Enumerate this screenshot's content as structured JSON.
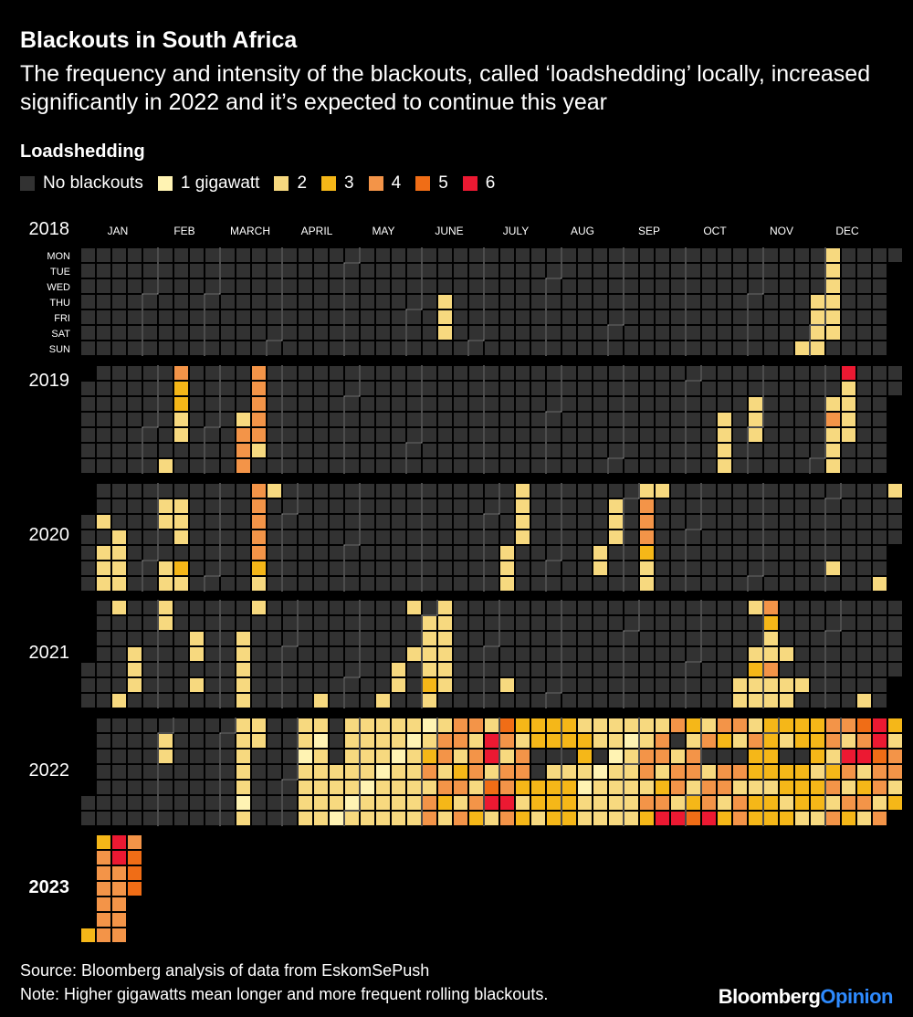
{
  "header": {
    "title": "Blackouts in South Africa",
    "subtitle": "The frequency and intensity of the blackouts, called ‘loadshedding’ locally, increased significantly in 2022 and it’s expected to continue this year"
  },
  "legend": {
    "title": "Loadshedding",
    "items": [
      {
        "label": "No blackouts",
        "color": "#323232"
      },
      {
        "label": "1 gigawatt",
        "color": "#fff3b3"
      },
      {
        "label": "2",
        "color": "#f7d97f"
      },
      {
        "label": "3",
        "color": "#f5b718"
      },
      {
        "label": "4",
        "color": "#f39448"
      },
      {
        "label": "5",
        "color": "#f06d16"
      },
      {
        "label": "6",
        "color": "#ec1932"
      }
    ]
  },
  "chart_data": {
    "type": "heatmap",
    "title": "Blackouts in South Africa",
    "months": [
      "JAN",
      "FEB",
      "MARCH",
      "APRIL",
      "MAY",
      "JUNE",
      "JULY",
      "AUG",
      "SEP",
      "OCT",
      "NOV",
      "DEC"
    ],
    "weekdays": [
      "MON",
      "TUE",
      "WED",
      "THU",
      "FRI",
      "SAT",
      "SUN"
    ],
    "value_scale": "0 = no blackouts, 1-6 = loadshedding gigawatts",
    "levels": [
      0,
      1,
      2,
      3,
      4,
      5,
      6
    ],
    "years": [
      {
        "year": "2018",
        "days": [
          [
            "2018-06-14",
            2
          ],
          [
            "2018-06-15",
            2
          ],
          [
            "2018-06-16",
            2
          ],
          [
            "2018-11-25",
            2
          ],
          [
            "2018-12-02",
            2
          ],
          [
            "2018-12-01",
            2
          ],
          [
            "2018-11-29",
            2
          ],
          [
            "2018-11-30",
            2
          ],
          [
            "2018-12-03",
            2
          ],
          [
            "2018-12-04",
            2
          ],
          [
            "2018-12-05",
            2
          ],
          [
            "2018-12-06",
            2
          ],
          [
            "2018-12-07",
            2
          ],
          [
            "2018-12-08",
            2
          ]
        ]
      },
      {
        "year": "2019",
        "days": [
          [
            "2019-02-11",
            4
          ],
          [
            "2019-02-12",
            3
          ],
          [
            "2019-02-13",
            3
          ],
          [
            "2019-02-14",
            2
          ],
          [
            "2019-02-15",
            2
          ],
          [
            "2019-02-10",
            2
          ],
          [
            "2019-03-18",
            4
          ],
          [
            "2019-03-19",
            4
          ],
          [
            "2019-03-20",
            4
          ],
          [
            "2019-03-21",
            4
          ],
          [
            "2019-03-22",
            4
          ],
          [
            "2019-03-23",
            2
          ],
          [
            "2019-03-14",
            2
          ],
          [
            "2019-03-15",
            4
          ],
          [
            "2019-03-16",
            4
          ],
          [
            "2019-03-17",
            4
          ],
          [
            "2019-10-17",
            2
          ],
          [
            "2019-10-18",
            2
          ],
          [
            "2019-10-19",
            2
          ],
          [
            "2019-10-20",
            2
          ],
          [
            "2019-10-31",
            2
          ],
          [
            "2019-11-01",
            2
          ],
          [
            "2019-10-30",
            2
          ],
          [
            "2019-12-09",
            6
          ],
          [
            "2019-12-10",
            2
          ],
          [
            "2019-12-11",
            2
          ],
          [
            "2019-12-12",
            2
          ],
          [
            "2019-12-13",
            2
          ],
          [
            "2019-12-04",
            2
          ],
          [
            "2019-12-05",
            4
          ],
          [
            "2019-12-06",
            2
          ],
          [
            "2019-12-07",
            2
          ],
          [
            "2019-12-08",
            2
          ]
        ]
      },
      {
        "year": "2020",
        "days": [
          [
            "2020-01-08",
            2
          ],
          [
            "2020-01-10",
            2
          ],
          [
            "2020-01-11",
            2
          ],
          [
            "2020-01-12",
            2
          ],
          [
            "2020-01-19",
            2
          ],
          [
            "2020-01-17",
            2
          ],
          [
            "2020-01-16",
            2
          ],
          [
            "2020-01-18",
            2
          ],
          [
            "2020-02-04",
            2
          ],
          [
            "2020-02-05",
            2
          ],
          [
            "2020-02-11",
            2
          ],
          [
            "2020-02-12",
            2
          ],
          [
            "2020-02-13",
            2
          ],
          [
            "2020-02-08",
            2
          ],
          [
            "2020-02-09",
            2
          ],
          [
            "2020-02-15",
            3
          ],
          [
            "2020-02-16",
            2
          ],
          [
            "2020-03-16",
            4
          ],
          [
            "2020-03-17",
            4
          ],
          [
            "2020-03-18",
            4
          ],
          [
            "2020-03-19",
            4
          ],
          [
            "2020-03-20",
            4
          ],
          [
            "2020-03-21",
            3
          ],
          [
            "2020-03-22",
            2
          ],
          [
            "2020-03-23",
            2
          ],
          [
            "2020-07-13",
            2
          ],
          [
            "2020-07-14",
            2
          ],
          [
            "2020-07-15",
            2
          ],
          [
            "2020-07-16",
            2
          ],
          [
            "2020-07-10",
            2
          ],
          [
            "2020-07-11",
            2
          ],
          [
            "2020-07-12",
            2
          ],
          [
            "2020-08-25",
            2
          ],
          [
            "2020-08-26",
            2
          ],
          [
            "2020-08-27",
            2
          ],
          [
            "2020-08-21",
            2
          ],
          [
            "2020-08-22",
            2
          ],
          [
            "2020-09-07",
            2
          ],
          [
            "2020-09-08",
            4
          ],
          [
            "2020-09-09",
            4
          ],
          [
            "2020-09-10",
            4
          ],
          [
            "2020-09-11",
            3
          ],
          [
            "2020-09-12",
            2
          ],
          [
            "2020-09-13",
            2
          ],
          [
            "2020-09-14",
            2
          ],
          [
            "2020-12-05",
            2
          ],
          [
            "2020-12-27",
            2
          ],
          [
            "2020-12-28",
            2
          ]
        ]
      },
      {
        "year": "2021",
        "days": [
          [
            "2021-01-21",
            2
          ],
          [
            "2021-01-22",
            2
          ],
          [
            "2021-01-23",
            2
          ],
          [
            "2021-01-17",
            2
          ],
          [
            "2021-01-11",
            2
          ],
          [
            "2021-02-01",
            2
          ],
          [
            "2021-02-02",
            2
          ],
          [
            "2021-02-17",
            2
          ],
          [
            "2021-02-18",
            2
          ],
          [
            "2021-02-20",
            2
          ],
          [
            "2021-03-11",
            2
          ],
          [
            "2021-03-12",
            2
          ],
          [
            "2021-03-10",
            2
          ],
          [
            "2021-03-13",
            2
          ],
          [
            "2021-03-14",
            2
          ],
          [
            "2021-03-15",
            2
          ],
          [
            "2021-04-18",
            2
          ],
          [
            "2021-05-21",
            2
          ],
          [
            "2021-05-22",
            2
          ],
          [
            "2021-05-16",
            2
          ],
          [
            "2021-05-24",
            2
          ],
          [
            "2021-05-27",
            2
          ],
          [
            "2021-06-01",
            2
          ],
          [
            "2021-06-02",
            2
          ],
          [
            "2021-06-03",
            2
          ],
          [
            "2021-06-04",
            2
          ],
          [
            "2021-06-05",
            3
          ],
          [
            "2021-06-06",
            2
          ],
          [
            "2021-06-07",
            2
          ],
          [
            "2021-06-08",
            2
          ],
          [
            "2021-06-09",
            2
          ],
          [
            "2021-06-10",
            2
          ],
          [
            "2021-06-11",
            2
          ],
          [
            "2021-06-12",
            2
          ],
          [
            "2021-07-10",
            2
          ],
          [
            "2021-10-23",
            2
          ],
          [
            "2021-10-24",
            2
          ],
          [
            "2021-10-25",
            2
          ],
          [
            "2021-10-28",
            2
          ],
          [
            "2021-10-29",
            3
          ],
          [
            "2021-10-30",
            2
          ],
          [
            "2021-10-31",
            2
          ],
          [
            "2021-11-01",
            4
          ],
          [
            "2021-11-02",
            3
          ],
          [
            "2021-11-03",
            2
          ],
          [
            "2021-11-05",
            4
          ],
          [
            "2021-11-06",
            2
          ],
          [
            "2021-11-07",
            2
          ],
          [
            "2021-11-04",
            2
          ],
          [
            "2021-11-11",
            2
          ],
          [
            "2021-11-13",
            2
          ],
          [
            "2021-11-14",
            2
          ],
          [
            "2021-11-20",
            2
          ],
          [
            "2021-12-19",
            2
          ]
        ]
      },
      {
        "year": "2022",
        "days": []
      },
      {
        "year": "2023",
        "days": [
          [
            "2023-01-01",
            3
          ],
          [
            "2023-01-02",
            3
          ],
          [
            "2023-01-03",
            4
          ],
          [
            "2023-01-04",
            4
          ],
          [
            "2023-01-05",
            4
          ],
          [
            "2023-01-06",
            4
          ],
          [
            "2023-01-07",
            4
          ],
          [
            "2023-01-08",
            4
          ],
          [
            "2023-01-09",
            6
          ],
          [
            "2023-01-10",
            6
          ],
          [
            "2023-01-11",
            4
          ],
          [
            "2023-01-12",
            4
          ],
          [
            "2023-01-13",
            4
          ],
          [
            "2023-01-14",
            4
          ],
          [
            "2023-01-15",
            4
          ],
          [
            "2023-01-16",
            4
          ],
          [
            "2023-01-17",
            5
          ],
          [
            "2023-01-18",
            5
          ],
          [
            "2023-01-19",
            5
          ]
        ]
      }
    ],
    "dense_ranges_2022": [
      {
        "from": "2022-02-01",
        "to": "2022-02-02",
        "level": 2
      },
      {
        "from": "2022-03-07",
        "to": "2022-03-15",
        "level": 2
      },
      {
        "from": "2022-04-04",
        "to": "2022-04-17",
        "level": 2
      },
      {
        "from": "2022-04-21",
        "to": "2022-05-31",
        "level": 2
      },
      {
        "from": "2022-06-01",
        "to": "2022-07-14",
        "level": 4
      },
      {
        "from": "2022-07-15",
        "to": "2022-08-10",
        "level": 3
      },
      {
        "from": "2022-08-11",
        "to": "2022-09-05",
        "level": 2
      },
      {
        "from": "2022-09-06",
        "to": "2022-10-25",
        "level": 4
      },
      {
        "from": "2022-10-26",
        "to": "2022-11-25",
        "level": 3
      },
      {
        "from": "2022-11-26",
        "to": "2022-12-31",
        "level": 4
      }
    ],
    "peak_days_2022": [
      [
        "2022-06-28",
        6
      ],
      [
        "2022-06-29",
        6
      ],
      [
        "2022-07-01",
        5
      ],
      [
        "2022-07-02",
        6
      ],
      [
        "2022-07-04",
        5
      ],
      [
        "2022-07-09",
        6
      ],
      [
        "2022-09-18",
        6
      ],
      [
        "2022-09-25",
        6
      ],
      [
        "2022-10-02",
        5
      ],
      [
        "2022-10-09",
        6
      ],
      [
        "2022-12-07",
        6
      ],
      [
        "2022-12-14",
        6
      ],
      [
        "2022-12-19",
        6
      ],
      [
        "2022-12-20",
        6
      ],
      [
        "2022-12-21",
        5
      ],
      [
        "2022-12-12",
        5
      ]
    ],
    "quiet_days_2022": [
      "2022-07-20",
      "2022-07-21",
      "2022-07-27",
      "2022-08-03",
      "2022-08-17",
      "2022-09-20",
      "2022-10-05",
      "2022-10-12",
      "2022-10-19",
      "2022-11-09",
      "2022-11-16"
    ]
  },
  "footer": {
    "source": "Source: Bloomberg analysis of data from EskomSePush",
    "note": "Note: Higher gigawatts mean longer and more frequent rolling blackouts.",
    "brand_1": "Bloomberg",
    "brand_2": "Opinion"
  }
}
